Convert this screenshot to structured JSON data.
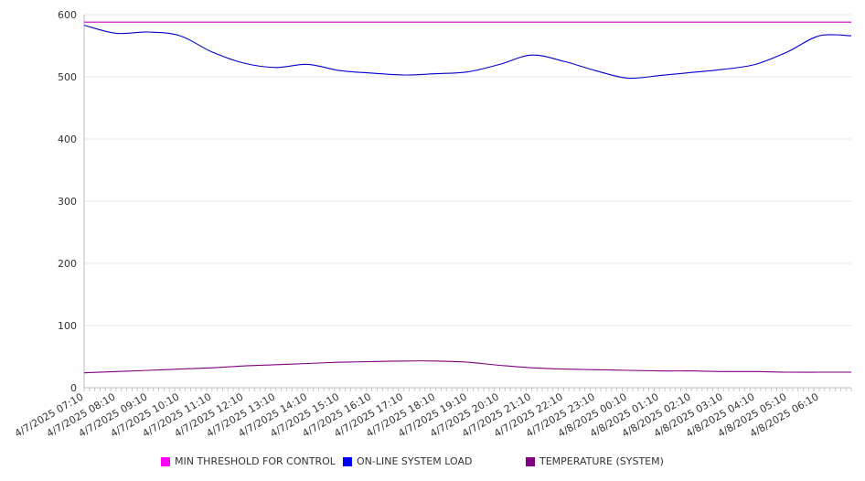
{
  "chart_data": {
    "type": "line",
    "title": "",
    "xlabel": "",
    "ylabel": "",
    "ylim": [
      0,
      600
    ],
    "yticks": [
      0,
      100,
      200,
      300,
      400,
      500,
      600
    ],
    "grid": true,
    "legend_position": "bottom",
    "x": [
      "4/7/2025 07:10",
      "4/7/2025 08:10",
      "4/7/2025 09:10",
      "4/7/2025 10:10",
      "4/7/2025 11:10",
      "4/7/2025 12:10",
      "4/7/2025 13:10",
      "4/7/2025 14:10",
      "4/7/2025 15:10",
      "4/7/2025 16:10",
      "4/7/2025 17:10",
      "4/7/2025 18:10",
      "4/7/2025 19:10",
      "4/7/2025 20:10",
      "4/7/2025 21:10",
      "4/7/2025 22:10",
      "4/7/2025 23:10",
      "4/8/2025 00:10",
      "4/8/2025 01:10",
      "4/8/2025 02:10",
      "4/8/2025 03:10",
      "4/8/2025 04:10",
      "4/8/2025 05:10",
      "4/8/2025 06:10"
    ],
    "series": [
      {
        "name": "MIN THRESHOLD FOR CONTROL",
        "color": "#cc00cc",
        "values": [
          588,
          588,
          588,
          588,
          588,
          588,
          588,
          588,
          588,
          588,
          588,
          588,
          588,
          588,
          588,
          588,
          588,
          588,
          588,
          588,
          588,
          588,
          588,
          588
        ]
      },
      {
        "name": "ON-LINE SYSTEM LOAD",
        "color": "#0000cc",
        "values": [
          583,
          570,
          572,
          566,
          540,
          522,
          515,
          520,
          510,
          506,
          503,
          505,
          508,
          520,
          535,
          525,
          510,
          498,
          502,
          507,
          512,
          520,
          540,
          566
        ]
      },
      {
        "name": "TEMPERATURE (SYSTEM)",
        "color": "#800080",
        "values": [
          24,
          26,
          28,
          30,
          32,
          35,
          37,
          39,
          41,
          42,
          43,
          43,
          41,
          36,
          32,
          30,
          29,
          28,
          27,
          27,
          26,
          26,
          25,
          25
        ]
      }
    ]
  }
}
